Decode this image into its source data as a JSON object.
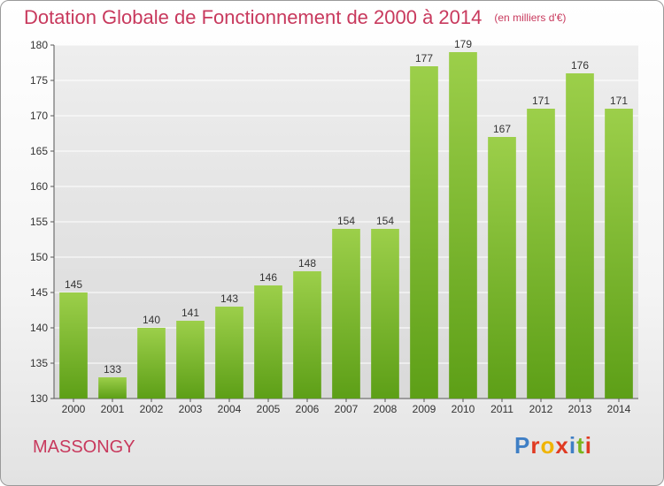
{
  "header": {
    "title": "Dotation Globale de Fonctionnement de 2000 à 2014",
    "unit": "(en milliers d'€)"
  },
  "footer": {
    "commune": "MASSONGY",
    "brand": "Proxiti",
    "brand_colors": [
      "#3f7fc5",
      "#e03a22",
      "#f0b400",
      "#e03a22",
      "#3f7fc5",
      "#7ab51d",
      "#e03a22"
    ]
  },
  "colors": {
    "bar_top": "#9ccf4a",
    "bar_bottom": "#5d9f17",
    "title": "#c8395d"
  },
  "chart_data": {
    "type": "bar",
    "categories": [
      "2000",
      "2001",
      "2002",
      "2003",
      "2004",
      "2005",
      "2006",
      "2007",
      "2008",
      "2009",
      "2010",
      "2011",
      "2012",
      "2013",
      "2014"
    ],
    "values": [
      145,
      133,
      140,
      141,
      143,
      146,
      148,
      154,
      154,
      177,
      179,
      167,
      171,
      176,
      171
    ],
    "data_labels": [
      "145",
      "133",
      "140",
      "141",
      "143",
      "146",
      "148",
      "154",
      "154",
      "177",
      "179",
      "167",
      "171",
      "176",
      "171"
    ],
    "ylim": [
      130,
      180
    ],
    "yticks": [
      130,
      135,
      140,
      145,
      150,
      155,
      160,
      165,
      170,
      175,
      180
    ],
    "grid": true,
    "legend": "none"
  }
}
